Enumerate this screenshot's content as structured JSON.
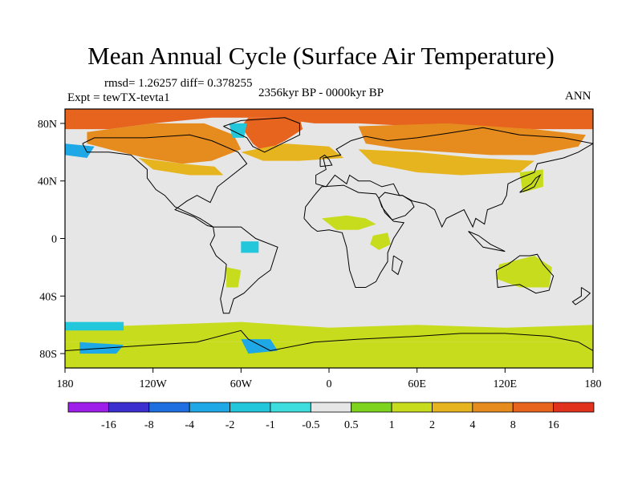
{
  "title": "Mean Annual Cycle (Surface Air Temperature)",
  "stats": "rmsd= 1.26257 diff= 0.378255",
  "experiment": "Expt = tewTX-tevta1",
  "period": "2356kyr BP - 0000kyr BP",
  "season": "ANN",
  "map": {
    "projection": "cylindrical-equidistant",
    "lon_range": [
      -180,
      180
    ],
    "lat_range": [
      -90,
      90
    ],
    "lon_ticks": [
      {
        "value": -180,
        "label": "180"
      },
      {
        "value": -120,
        "label": "120W"
      },
      {
        "value": -60,
        "label": "60W"
      },
      {
        "value": 0,
        "label": "0"
      },
      {
        "value": 60,
        "label": "60E"
      },
      {
        "value": 120,
        "label": "120E"
      },
      {
        "value": 180,
        "label": "180"
      }
    ],
    "lat_ticks": [
      {
        "value": 80,
        "label": "80N"
      },
      {
        "value": 40,
        "label": "40N"
      },
      {
        "value": 0,
        "label": "0"
      },
      {
        "value": -40,
        "label": "40S"
      },
      {
        "value": -80,
        "label": "80S"
      }
    ]
  },
  "colorbar": {
    "colors": [
      "#9f1fea",
      "#3b2fd0",
      "#1f6fe0",
      "#1ea8e6",
      "#23c7dc",
      "#3fdede",
      "#e6e6e6",
      "#7ed31e",
      "#c8dc1e",
      "#e6b41e",
      "#e68c1e",
      "#e6641e",
      "#e1321e"
    ],
    "labels": [
      "-16",
      "-8",
      "-4",
      "-2",
      "-1",
      "-0.5",
      "0.5",
      "1",
      "2",
      "4",
      "8",
      "16"
    ]
  },
  "regions": [
    {
      "name": "arctic-ocean-warm",
      "level": "8",
      "pts": [
        [
          -180,
          90
        ],
        [
          180,
          90
        ],
        [
          180,
          76
        ],
        [
          140,
          76
        ],
        [
          100,
          78
        ],
        [
          60,
          78
        ],
        [
          20,
          80
        ],
        [
          -10,
          80
        ],
        [
          -40,
          84
        ],
        [
          -80,
          84
        ],
        [
          -120,
          80
        ],
        [
          -150,
          76
        ],
        [
          -180,
          76
        ]
      ]
    },
    {
      "name": "greenland-strong-warm",
      "level": "8",
      "pts": [
        [
          -55,
          84
        ],
        [
          -20,
          84
        ],
        [
          -18,
          76
        ],
        [
          -30,
          68
        ],
        [
          -45,
          60
        ],
        [
          -52,
          66
        ],
        [
          -60,
          78
        ]
      ]
    },
    {
      "name": "eurasia-north-warm",
      "level": "4",
      "pts": [
        [
          20,
          78
        ],
        [
          80,
          80
        ],
        [
          140,
          76
        ],
        [
          175,
          72
        ],
        [
          170,
          64
        ],
        [
          140,
          58
        ],
        [
          110,
          58
        ],
        [
          80,
          60
        ],
        [
          50,
          62
        ],
        [
          25,
          66
        ]
      ]
    },
    {
      "name": "eurasia-central-warm",
      "level": "2",
      "pts": [
        [
          20,
          62
        ],
        [
          60,
          60
        ],
        [
          100,
          56
        ],
        [
          140,
          54
        ],
        [
          130,
          46
        ],
        [
          90,
          44
        ],
        [
          60,
          46
        ],
        [
          30,
          52
        ]
      ]
    },
    {
      "name": "north-america-warm",
      "level": "4",
      "pts": [
        [
          -165,
          74
        ],
        [
          -120,
          80
        ],
        [
          -85,
          80
        ],
        [
          -65,
          72
        ],
        [
          -60,
          62
        ],
        [
          -80,
          54
        ],
        [
          -100,
          52
        ],
        [
          -125,
          56
        ],
        [
          -150,
          62
        ],
        [
          -165,
          66
        ]
      ]
    },
    {
      "name": "north-america-mild",
      "level": "2",
      "pts": [
        [
          -130,
          56
        ],
        [
          -100,
          52
        ],
        [
          -78,
          50
        ],
        [
          -72,
          44
        ],
        [
          -95,
          44
        ],
        [
          -120,
          48
        ]
      ]
    },
    {
      "name": "north-atlantic-warm",
      "level": "2",
      "pts": [
        [
          -60,
          60
        ],
        [
          -30,
          66
        ],
        [
          0,
          64
        ],
        [
          10,
          56
        ],
        [
          -20,
          54
        ],
        [
          -45,
          54
        ]
      ]
    },
    {
      "name": "north-pacific-cool",
      "level": "-2",
      "pts": [
        [
          -180,
          66
        ],
        [
          -160,
          64
        ],
        [
          -165,
          56
        ],
        [
          -180,
          58
        ]
      ]
    },
    {
      "name": "greenland-coast-cool",
      "level": "-1",
      "pts": [
        [
          -68,
          80
        ],
        [
          -56,
          80
        ],
        [
          -58,
          70
        ],
        [
          -66,
          70
        ]
      ]
    },
    {
      "name": "japan-warm",
      "level": "1",
      "pts": [
        [
          130,
          46
        ],
        [
          146,
          48
        ],
        [
          146,
          36
        ],
        [
          132,
          32
        ]
      ]
    },
    {
      "name": "africa-sahel-warm",
      "level": "1",
      "pts": [
        [
          -5,
          14
        ],
        [
          12,
          16
        ],
        [
          25,
          14
        ],
        [
          32,
          10
        ],
        [
          20,
          6
        ],
        [
          5,
          6
        ]
      ]
    },
    {
      "name": "africa-east-warm",
      "level": "1",
      "pts": [
        [
          30,
          2
        ],
        [
          40,
          4
        ],
        [
          42,
          -4
        ],
        [
          34,
          -8
        ],
        [
          28,
          -4
        ]
      ]
    },
    {
      "name": "amazon-cool",
      "level": "-1",
      "pts": [
        [
          -60,
          -2
        ],
        [
          -48,
          -2
        ],
        [
          -48,
          -10
        ],
        [
          -60,
          -10
        ]
      ]
    },
    {
      "name": "south-america-warm",
      "level": "1",
      "pts": [
        [
          -70,
          -20
        ],
        [
          -60,
          -22
        ],
        [
          -62,
          -34
        ],
        [
          -70,
          -34
        ]
      ]
    },
    {
      "name": "australia-warm",
      "level": "1",
      "pts": [
        [
          116,
          -18
        ],
        [
          140,
          -12
        ],
        [
          152,
          -20
        ],
        [
          150,
          -34
        ],
        [
          130,
          -34
        ],
        [
          114,
          -28
        ]
      ]
    },
    {
      "name": "southern-ocean-warm",
      "level": "1",
      "pts": [
        [
          -180,
          -62
        ],
        [
          -120,
          -60
        ],
        [
          -60,
          -58
        ],
        [
          0,
          -62
        ],
        [
          60,
          -60
        ],
        [
          120,
          -62
        ],
        [
          180,
          -60
        ],
        [
          180,
          -72
        ],
        [
          -180,
          -72
        ]
      ]
    },
    {
      "name": "antarctica-warm",
      "level": "1",
      "pts": [
        [
          -180,
          -72
        ],
        [
          180,
          -72
        ],
        [
          180,
          -90
        ],
        [
          -180,
          -90
        ]
      ]
    },
    {
      "name": "ross-sea-cool",
      "level": "-2",
      "pts": [
        [
          -170,
          -72
        ],
        [
          -140,
          -74
        ],
        [
          -145,
          -80
        ],
        [
          -170,
          -80
        ]
      ]
    },
    {
      "name": "weddell-sea-cool",
      "level": "-2",
      "pts": [
        [
          -60,
          -70
        ],
        [
          -40,
          -70
        ],
        [
          -35,
          -78
        ],
        [
          -55,
          -80
        ]
      ]
    },
    {
      "name": "southern-ocean-cool",
      "level": "-1",
      "pts": [
        [
          -180,
          -58
        ],
        [
          -140,
          -58
        ],
        [
          -140,
          -64
        ],
        [
          -180,
          -64
        ]
      ]
    }
  ]
}
